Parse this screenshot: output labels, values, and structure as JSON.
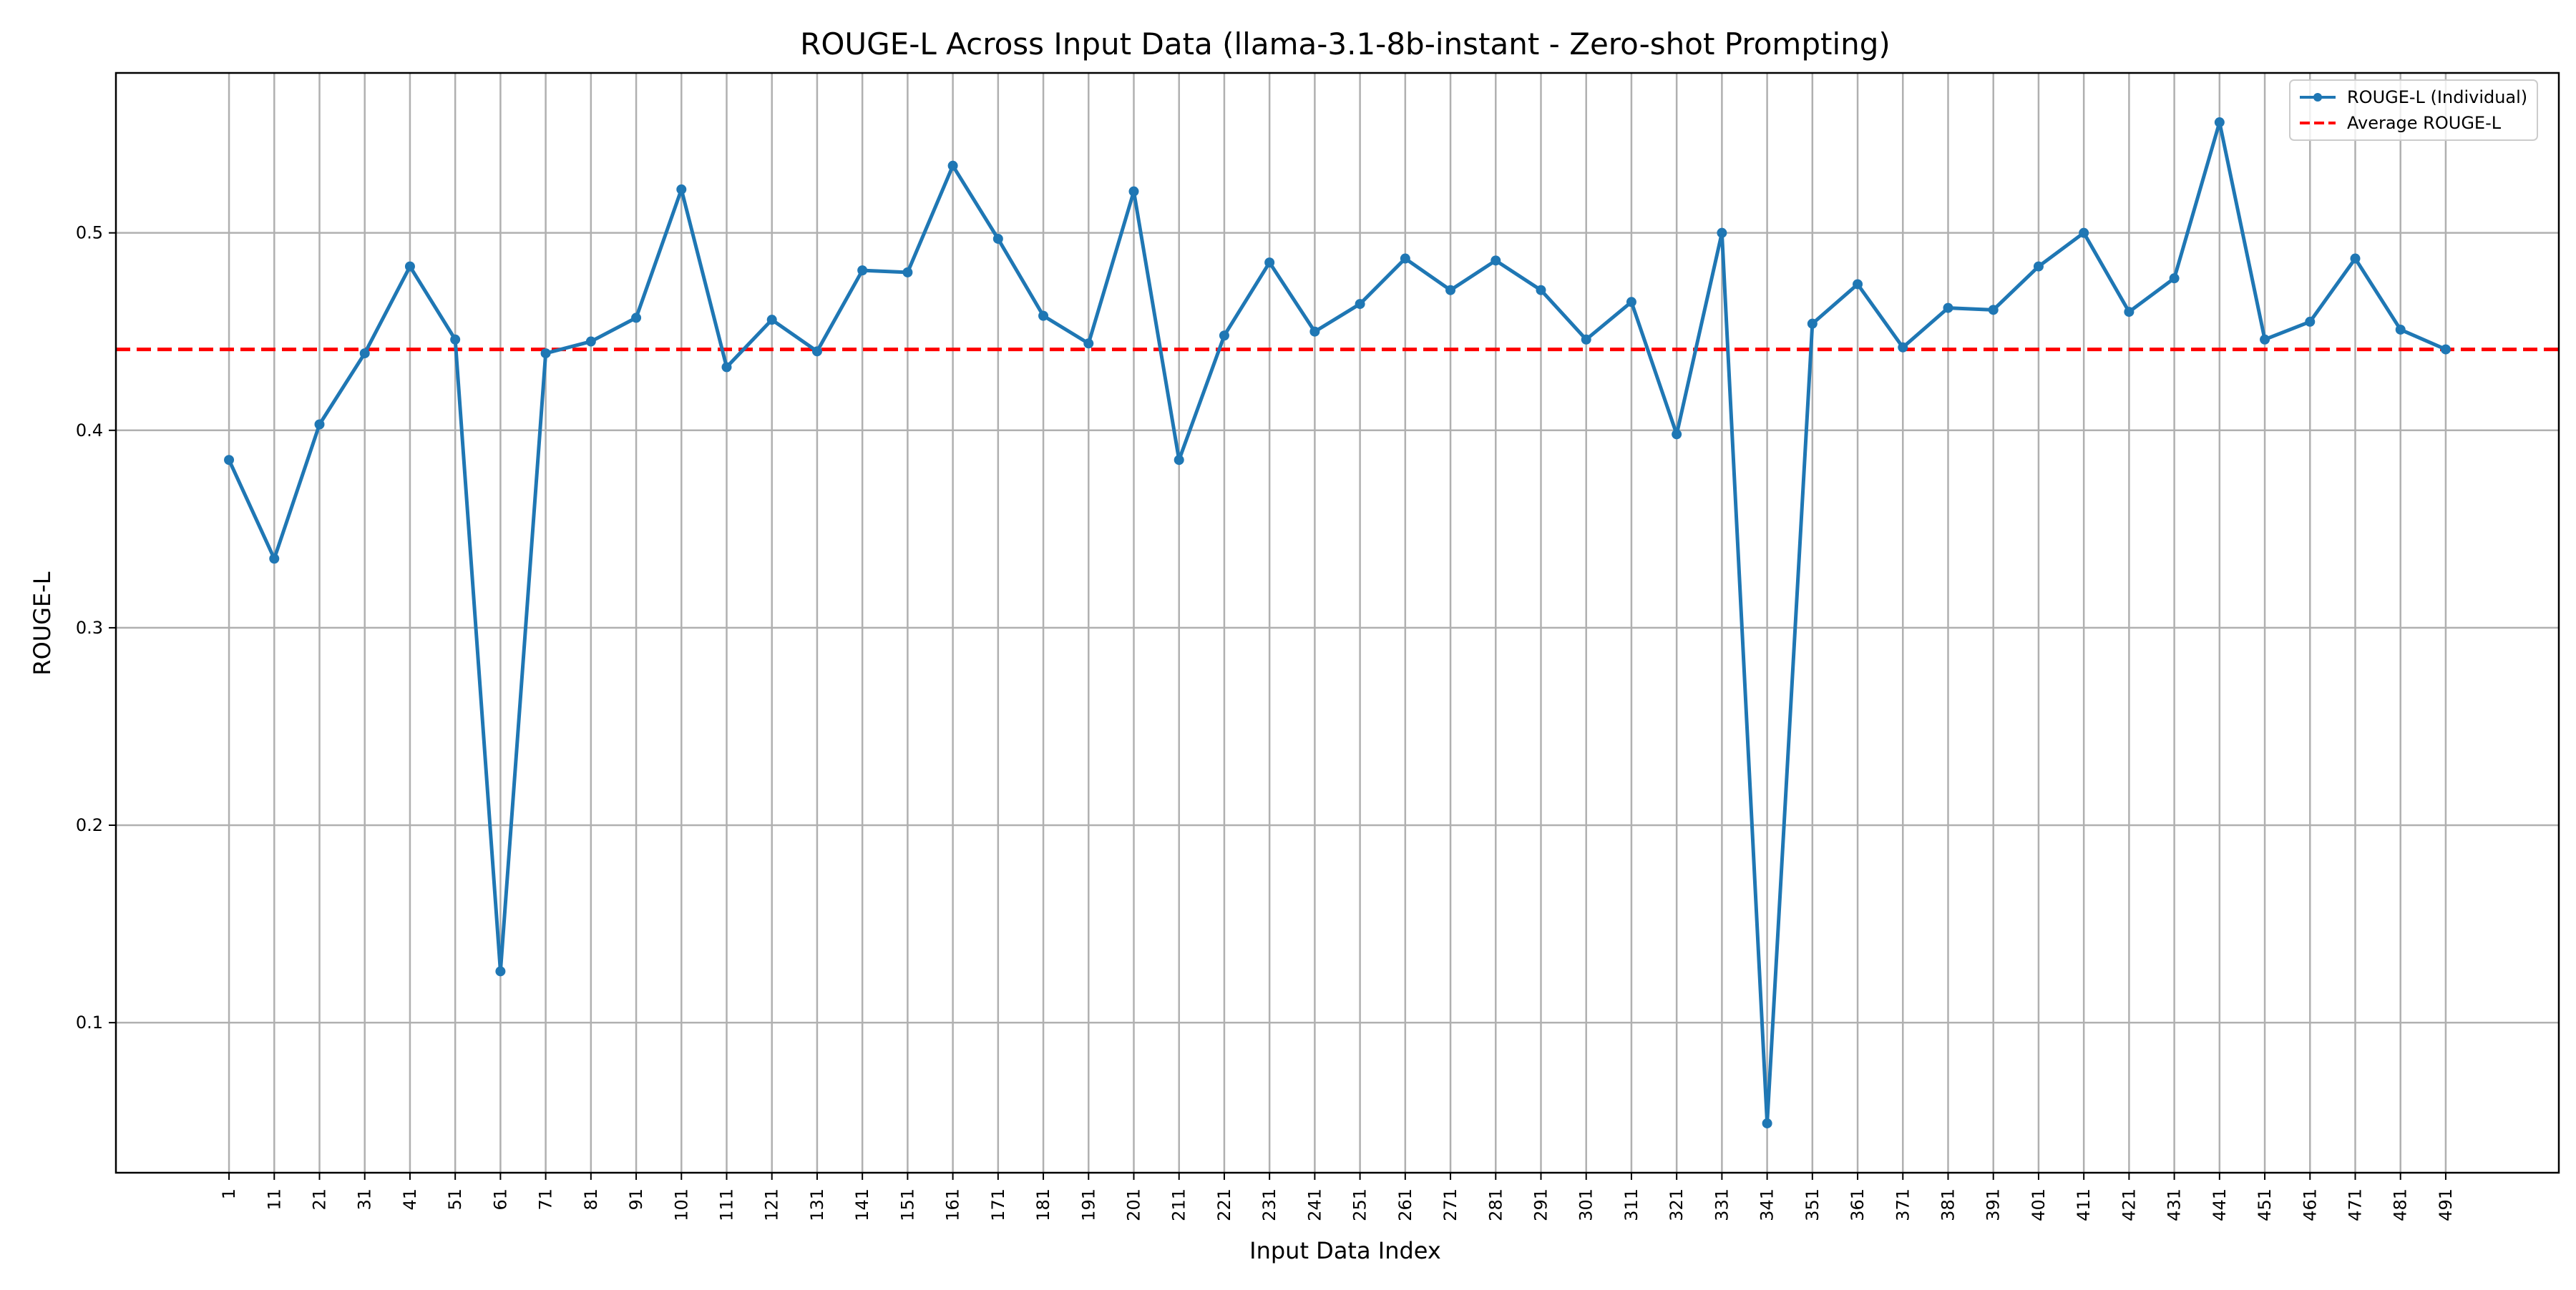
{
  "chart_data": {
    "type": "line",
    "title": "ROUGE-L Across Input Data (llama-3.1-8b-instant - Zero-shot Prompting)",
    "xlabel": "Input Data Index",
    "ylabel": "ROUGE-L",
    "x": [
      1,
      11,
      21,
      31,
      41,
      51,
      61,
      71,
      81,
      91,
      101,
      111,
      121,
      131,
      141,
      151,
      161,
      171,
      181,
      191,
      201,
      211,
      221,
      231,
      241,
      251,
      261,
      271,
      281,
      291,
      301,
      311,
      321,
      331,
      341,
      351,
      361,
      371,
      381,
      391,
      401,
      411,
      421,
      431,
      441,
      451,
      461,
      471,
      481,
      491
    ],
    "x_tick_labels": [
      "1",
      "11",
      "21",
      "31",
      "41",
      "51",
      "61",
      "71",
      "81",
      "91",
      "101",
      "111",
      "121",
      "131",
      "141",
      "151",
      "161",
      "171",
      "181",
      "191",
      "201",
      "211",
      "221",
      "231",
      "241",
      "251",
      "261",
      "271",
      "281",
      "291",
      "301",
      "311",
      "321",
      "331",
      "341",
      "351",
      "361",
      "371",
      "381",
      "391",
      "401",
      "411",
      "421",
      "431",
      "441",
      "451",
      "461",
      "471",
      "481",
      "491"
    ],
    "xlim": [
      -24,
      516
    ],
    "ylim": [
      0.024,
      0.581
    ],
    "y_ticks": [
      0.1,
      0.2,
      0.3,
      0.4,
      0.5
    ],
    "y_tick_labels": [
      "0.1",
      "0.2",
      "0.3",
      "0.4",
      "0.5"
    ],
    "grid": true,
    "legend_position": "top-right",
    "series": [
      {
        "name": "ROUGE-L (Individual)",
        "color": "#1f77b4",
        "style": "solid-with-markers",
        "values": [
          0.385,
          0.335,
          0.403,
          0.439,
          0.483,
          0.446,
          0.126,
          0.439,
          0.445,
          0.457,
          0.522,
          0.432,
          0.456,
          0.44,
          0.481,
          0.48,
          0.534,
          0.497,
          0.458,
          0.444,
          0.521,
          0.385,
          0.448,
          0.485,
          0.45,
          0.464,
          0.487,
          0.471,
          0.486,
          0.471,
          0.446,
          0.465,
          0.398,
          0.5,
          0.049,
          0.454,
          0.474,
          0.442,
          0.462,
          0.461,
          0.483,
          0.5,
          0.46,
          0.477,
          0.556,
          0.446,
          0.455,
          0.487,
          0.451,
          0.441
        ]
      },
      {
        "name": "Average ROUGE-L",
        "color": "#ff0000",
        "style": "dashed",
        "value": 0.441
      }
    ]
  }
}
